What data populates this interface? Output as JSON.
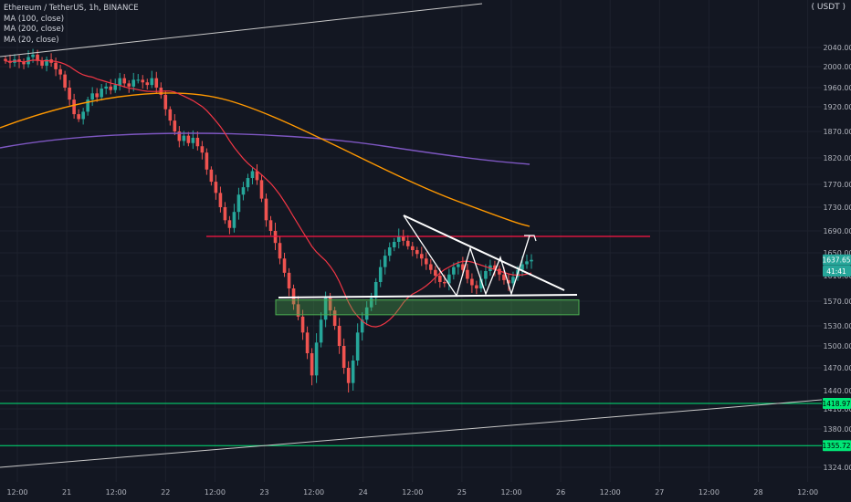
{
  "legend": {
    "symbol": "Ethereum / TetherUS, 1h, BINANCE",
    "ma100": "MA (100, close)",
    "ma200": "MA (200, close)",
    "ma20": "MA (20, close)"
  },
  "currency": "USDT",
  "colors": {
    "background": "#131722",
    "grid": "#1e222d",
    "up": "#26a69a",
    "down": "#ef5350",
    "ma20": "#f23645",
    "ma100": "#ff9800",
    "ma200": "#7e57c2",
    "support_zone": "#4caf50",
    "level_line": "#00e676",
    "resistance": "#ff1744",
    "trendline": "#ffffff"
  },
  "chart_data": {
    "type": "candlestick",
    "y_range": [
      1300,
      2080
    ],
    "y_ticks": [
      "2040.00",
      "2000.00",
      "1960.00",
      "1920.00",
      "1870.00",
      "1820.00",
      "1770.00",
      "1730.00",
      "1690.00",
      "1650.00",
      "1610.00",
      "1570.00",
      "1530.00",
      "1500.00",
      "1470.00",
      "1440.00",
      "1410.00",
      "1380.00",
      "1324.00"
    ],
    "x_ticks": [
      "12:00",
      "21",
      "12:00",
      "22",
      "12:00",
      "23",
      "12:00",
      "24",
      "12:00",
      "25",
      "12:00",
      "26",
      "12:00",
      "27",
      "12:00",
      "28",
      "12:00"
    ],
    "price_badges": [
      {
        "label": "1637.65",
        "value": 1637.65,
        "color": "#26a69a"
      },
      {
        "label": "41:41",
        "value": 1618,
        "color": "#26a69a"
      },
      {
        "label": "1418.97",
        "value": 1418.97,
        "color": "#00e676"
      },
      {
        "label": "1355.72",
        "value": 1355.72,
        "color": "#00e676"
      }
    ],
    "horizontal_levels": [
      {
        "value": 1418.97,
        "color": "#00e676"
      },
      {
        "value": 1355.72,
        "color": "#00e676"
      }
    ],
    "resistance_line": {
      "value": 1680,
      "x_start": "23 12:00",
      "x_end": "26 12:00"
    },
    "support_zone": {
      "from": 1548,
      "to": 1572
    },
    "series_close": [
      2012,
      2008,
      2015,
      2010,
      2005,
      2020,
      2025,
      2012,
      2002,
      2015,
      2008,
      1995,
      1985,
      1960,
      1935,
      1905,
      1895,
      1910,
      1935,
      1948,
      1940,
      1958,
      1962,
      1955,
      1965,
      1978,
      1968,
      1962,
      1975,
      1975,
      1970,
      1965,
      1978,
      1960,
      1945,
      1915,
      1892,
      1870,
      1852,
      1862,
      1848,
      1858,
      1842,
      1830,
      1798,
      1775,
      1755,
      1730,
      1708,
      1695,
      1722,
      1752,
      1765,
      1782,
      1795,
      1778,
      1745,
      1708,
      1690,
      1668,
      1640,
      1615,
      1590,
      1565,
      1545,
      1520,
      1490,
      1460,
      1505,
      1540,
      1575,
      1555,
      1530,
      1500,
      1470,
      1450,
      1480,
      1520,
      1540,
      1560,
      1575,
      1600,
      1625,
      1645,
      1660,
      1670,
      1680,
      1672,
      1662,
      1655,
      1648,
      1640,
      1630,
      1620,
      1610,
      1600,
      1598,
      1612,
      1625,
      1630,
      1620,
      1605,
      1595,
      1590,
      1605,
      1618,
      1628,
      1622,
      1612,
      1603,
      1598,
      1608,
      1620,
      1630,
      1635,
      1637.65
    ]
  }
}
